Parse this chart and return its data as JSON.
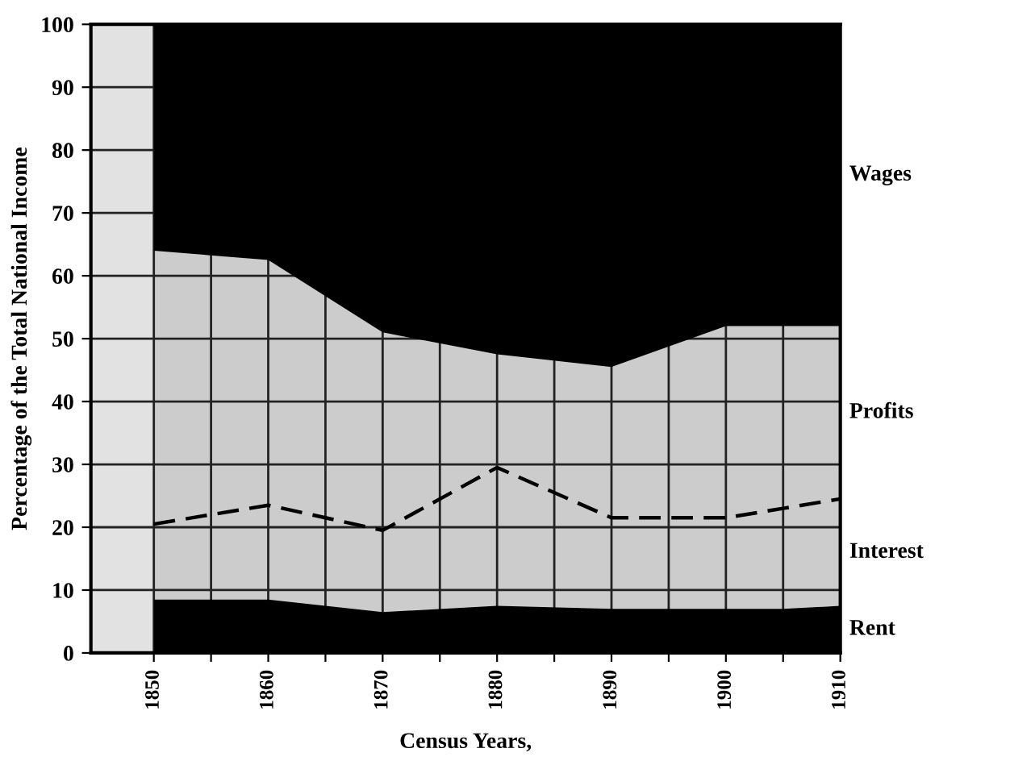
{
  "chart_data": {
    "type": "area",
    "stacked": true,
    "xlabel": "Census Years,",
    "ylabel": "Percentage of the Total National Income",
    "x": [
      1850,
      1860,
      1870,
      1880,
      1890,
      1900,
      1905,
      1910
    ],
    "series": [
      {
        "name": "Rent",
        "color": "#000000",
        "values": [
          8.5,
          8.5,
          6.5,
          7.5,
          7,
          7,
          7,
          7.5
        ]
      },
      {
        "name": "Interest",
        "color": "#cccccc",
        "line_style": "dashed",
        "values": [
          12,
          15,
          13,
          22,
          14.5,
          14.5,
          16,
          17
        ]
      },
      {
        "name": "Profits",
        "color": "#cccccc",
        "values": [
          43.5,
          39,
          31.5,
          18,
          24,
          30.5,
          29,
          27.5
        ]
      },
      {
        "name": "Wages",
        "color": "#000000",
        "values": [
          36,
          37.5,
          49,
          52.5,
          54.5,
          48,
          48,
          48
        ]
      }
    ],
    "xlim": [
      1844.5,
      1910
    ],
    "ylim": [
      0,
      100
    ],
    "xticks": [
      1850,
      {
        "value": 1855,
        "label": null
      },
      1860,
      {
        "value": 1865,
        "label": null
      },
      1870,
      {
        "value": 1875,
        "label": null
      },
      1880,
      {
        "value": 1885,
        "label": null
      },
      1890,
      {
        "value": 1895,
        "label": null
      },
      1900,
      {
        "value": 1905,
        "label": null
      },
      1910
    ],
    "yticks": [
      0,
      10,
      20,
      30,
      40,
      50,
      60,
      70,
      80,
      90,
      100
    ],
    "grid": true,
    "legend": false
  }
}
